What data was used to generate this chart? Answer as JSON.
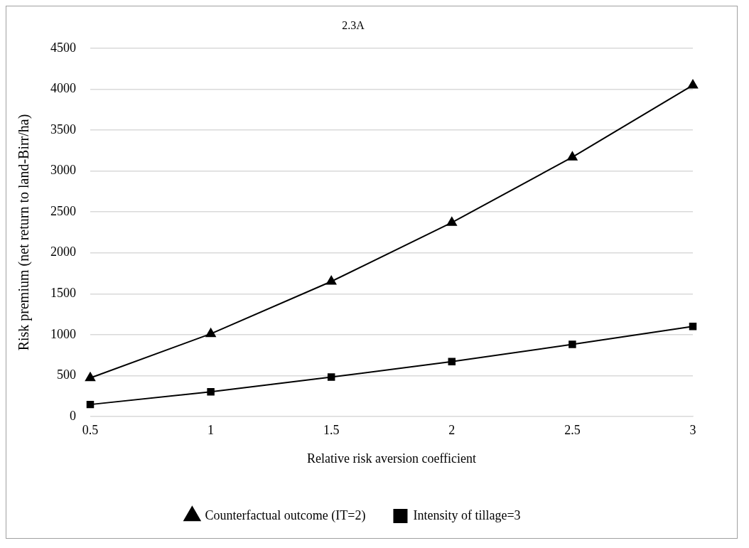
{
  "chart_data": {
    "type": "line",
    "title": "2.3A",
    "xlabel": "Relative risk aversion coefficient",
    "ylabel": "Risk premium (net return to land-Birr/ha)",
    "categories": [
      "0.5",
      "1",
      "1.5",
      "2",
      "2.5",
      "3"
    ],
    "series": [
      {
        "name": "Counterfactual outcome (IT=2)",
        "color": "#000000",
        "marker": "triangle",
        "values": [
          470,
          1010,
          1650,
          2370,
          3170,
          4050
        ]
      },
      {
        "name": "Intensity of tillage=3",
        "color": "#000000",
        "marker": "square",
        "values": [
          145,
          300,
          480,
          670,
          880,
          1100
        ]
      }
    ],
    "ylim": [
      0,
      4500
    ],
    "yticks": [
      0,
      500,
      1000,
      1500,
      2000,
      2500,
      3000,
      3500,
      4000,
      4500
    ],
    "grid": "y",
    "legend": "bottom",
    "line_style": "solid"
  }
}
